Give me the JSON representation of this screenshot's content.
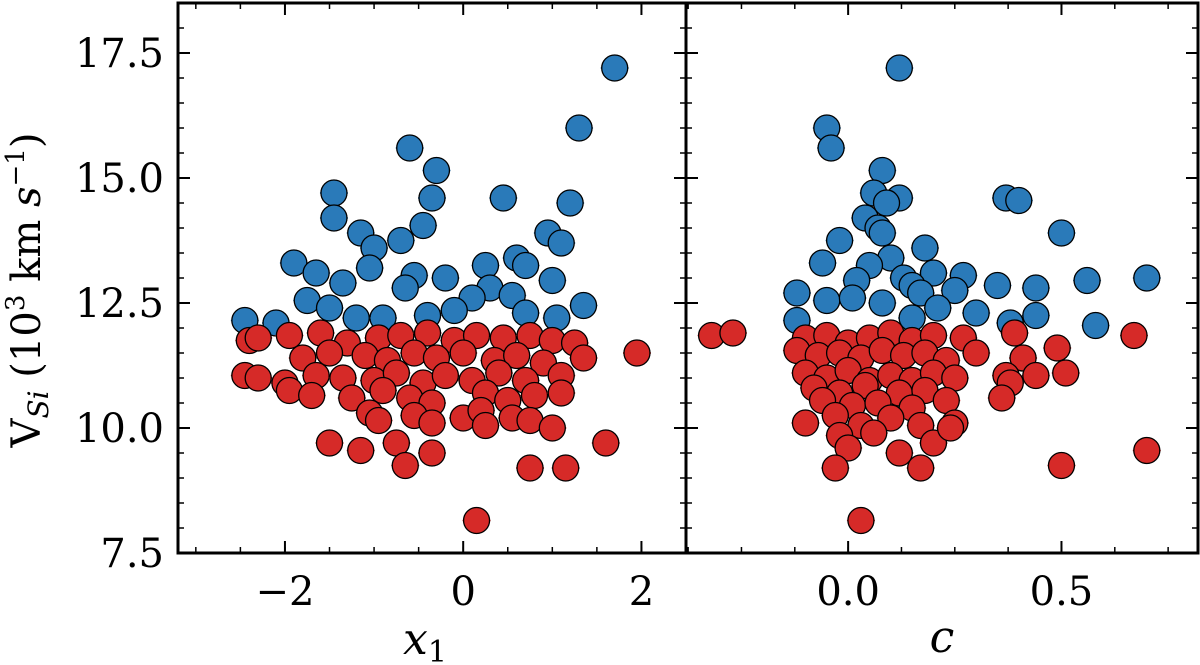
{
  "chart_data": [
    {
      "type": "scatter",
      "xlabel": "x1",
      "ylabel": "V_Si (10^3 km s^-1)",
      "xlim": [
        -3.2,
        2.5
      ],
      "ylim": [
        7.5,
        18.5
      ],
      "x_ticks": [
        -2,
        0,
        2
      ],
      "x_tick_labels": [
        "−2",
        "0",
        "2"
      ],
      "y_ticks": [
        7.5,
        10.0,
        12.5,
        15.0,
        17.5
      ],
      "y_tick_labels": [
        "7.5",
        "10.0",
        "12.5",
        "15.0",
        "17.5"
      ],
      "grid": false,
      "series": [
        {
          "color": "#2a7ab9",
          "points": [
            [
              1.7,
              17.2
            ],
            [
              1.3,
              16.0
            ],
            [
              -0.6,
              15.6
            ],
            [
              -0.3,
              15.15
            ],
            [
              -1.45,
              14.7
            ],
            [
              0.45,
              14.6
            ],
            [
              -0.35,
              14.6
            ],
            [
              1.2,
              14.5
            ],
            [
              -1.45,
              14.2
            ],
            [
              -0.45,
              14.05
            ],
            [
              -1.15,
              13.9
            ],
            [
              0.95,
              13.9
            ],
            [
              -0.7,
              13.75
            ],
            [
              1.1,
              13.7
            ],
            [
              -1.0,
              13.6
            ],
            [
              0.6,
              13.4
            ],
            [
              -1.9,
              13.3
            ],
            [
              0.25,
              13.25
            ],
            [
              -1.05,
              13.2
            ],
            [
              0.7,
              13.25
            ],
            [
              -1.65,
              13.1
            ],
            [
              -0.55,
              13.05
            ],
            [
              -0.2,
              13.0
            ],
            [
              1.0,
              12.95
            ],
            [
              -1.35,
              12.9
            ],
            [
              -0.65,
              12.8
            ],
            [
              0.3,
              12.8
            ],
            [
              0.55,
              12.65
            ],
            [
              0.1,
              12.6
            ],
            [
              1.35,
              12.45
            ],
            [
              -1.75,
              12.55
            ],
            [
              -1.5,
              12.4
            ],
            [
              -0.1,
              12.35
            ],
            [
              -0.9,
              12.2
            ],
            [
              0.7,
              12.3
            ],
            [
              1.05,
              12.2
            ],
            [
              -2.45,
              12.15
            ],
            [
              -2.1,
              12.1
            ],
            [
              -1.2,
              12.2
            ],
            [
              -0.4,
              12.25
            ]
          ]
        },
        {
          "color": "#d62a28",
          "points": [
            [
              -2.4,
              11.75
            ],
            [
              -2.3,
              11.8
            ],
            [
              -1.95,
              11.85
            ],
            [
              -1.6,
              11.9
            ],
            [
              -1.3,
              11.7
            ],
            [
              -0.95,
              11.8
            ],
            [
              -0.7,
              11.85
            ],
            [
              -0.4,
              11.9
            ],
            [
              -0.1,
              11.75
            ],
            [
              0.15,
              11.85
            ],
            [
              0.45,
              11.8
            ],
            [
              0.75,
              11.85
            ],
            [
              1.0,
              11.75
            ],
            [
              1.25,
              11.7
            ],
            [
              1.95,
              11.5
            ],
            [
              -1.8,
              11.4
            ],
            [
              -1.5,
              11.5
            ],
            [
              -1.1,
              11.45
            ],
            [
              -0.85,
              11.35
            ],
            [
              -0.55,
              11.5
            ],
            [
              -0.3,
              11.4
            ],
            [
              0.0,
              11.5
            ],
            [
              0.35,
              11.35
            ],
            [
              0.6,
              11.45
            ],
            [
              0.9,
              11.3
            ],
            [
              1.35,
              11.4
            ],
            [
              -2.45,
              11.05
            ],
            [
              -2.3,
              11.0
            ],
            [
              -2.0,
              10.9
            ],
            [
              -1.65,
              11.05
            ],
            [
              -1.35,
              11.0
            ],
            [
              -1.0,
              10.95
            ],
            [
              -0.75,
              11.1
            ],
            [
              -0.45,
              10.9
            ],
            [
              -0.2,
              11.05
            ],
            [
              0.1,
              10.95
            ],
            [
              0.4,
              11.1
            ],
            [
              0.7,
              10.95
            ],
            [
              1.1,
              11.05
            ],
            [
              -1.95,
              10.75
            ],
            [
              -1.7,
              10.65
            ],
            [
              -1.25,
              10.6
            ],
            [
              -0.9,
              10.75
            ],
            [
              -0.6,
              10.6
            ],
            [
              -0.35,
              10.5
            ],
            [
              0.25,
              10.7
            ],
            [
              0.5,
              10.55
            ],
            [
              0.8,
              10.65
            ],
            [
              1.1,
              10.7
            ],
            [
              -1.05,
              10.3
            ],
            [
              -0.55,
              10.25
            ],
            [
              0.0,
              10.2
            ],
            [
              0.2,
              10.35
            ],
            [
              0.55,
              10.2
            ],
            [
              -0.35,
              10.1
            ],
            [
              0.25,
              10.05
            ],
            [
              0.75,
              10.15
            ],
            [
              1.0,
              10.0
            ],
            [
              -0.95,
              10.15
            ],
            [
              -1.5,
              9.7
            ],
            [
              -1.15,
              9.55
            ],
            [
              -0.75,
              9.7
            ],
            [
              -0.35,
              9.5
            ],
            [
              -0.65,
              9.25
            ],
            [
              0.75,
              9.2
            ],
            [
              1.15,
              9.2
            ],
            [
              1.6,
              9.7
            ],
            [
              0.15,
              8.15
            ]
          ]
        }
      ]
    },
    {
      "type": "scatter",
      "xlabel": "c",
      "xlim": [
        -0.38,
        0.82
      ],
      "ylim": [
        7.5,
        18.5
      ],
      "x_ticks": [
        0.0,
        0.5
      ],
      "x_tick_labels": [
        "0.0",
        "0.5"
      ],
      "grid": false,
      "series": [
        {
          "color": "#2a7ab9",
          "points": [
            [
              0.12,
              17.2
            ],
            [
              -0.05,
              16.0
            ],
            [
              -0.04,
              15.6
            ],
            [
              0.08,
              15.15
            ],
            [
              0.06,
              14.7
            ],
            [
              0.12,
              14.6
            ],
            [
              0.37,
              14.6
            ],
            [
              0.4,
              14.55
            ],
            [
              0.09,
              14.5
            ],
            [
              0.04,
              14.2
            ],
            [
              0.07,
              14.0
            ],
            [
              0.5,
              13.9
            ],
            [
              -0.02,
              13.75
            ],
            [
              0.08,
              13.9
            ],
            [
              0.18,
              13.6
            ],
            [
              0.1,
              13.4
            ],
            [
              -0.06,
              13.3
            ],
            [
              0.05,
              13.25
            ],
            [
              0.2,
              13.1
            ],
            [
              0.27,
              13.05
            ],
            [
              0.13,
              13.0
            ],
            [
              0.02,
              12.95
            ],
            [
              0.56,
              12.95
            ],
            [
              0.7,
              13.0
            ],
            [
              0.15,
              12.85
            ],
            [
              0.35,
              12.85
            ],
            [
              0.44,
              12.8
            ],
            [
              0.25,
              12.75
            ],
            [
              0.17,
              12.7
            ],
            [
              -0.12,
              12.7
            ],
            [
              -0.05,
              12.55
            ],
            [
              0.01,
              12.6
            ],
            [
              0.08,
              12.5
            ],
            [
              0.21,
              12.4
            ],
            [
              0.3,
              12.3
            ],
            [
              0.44,
              12.25
            ],
            [
              0.58,
              12.05
            ],
            [
              0.38,
              12.1
            ],
            [
              -0.12,
              12.15
            ],
            [
              0.15,
              12.2
            ]
          ]
        },
        {
          "color": "#d62a28",
          "points": [
            [
              -0.32,
              11.85
            ],
            [
              -0.27,
              11.9
            ],
            [
              -0.1,
              11.8
            ],
            [
              -0.05,
              11.85
            ],
            [
              0.0,
              11.7
            ],
            [
              0.05,
              11.8
            ],
            [
              0.1,
              11.9
            ],
            [
              0.15,
              11.75
            ],
            [
              0.2,
              11.85
            ],
            [
              0.27,
              11.8
            ],
            [
              0.39,
              11.9
            ],
            [
              0.67,
              11.85
            ],
            [
              -0.12,
              11.55
            ],
            [
              -0.07,
              11.45
            ],
            [
              -0.02,
              11.5
            ],
            [
              0.03,
              11.4
            ],
            [
              0.08,
              11.55
            ],
            [
              0.13,
              11.45
            ],
            [
              0.18,
              11.5
            ],
            [
              0.23,
              11.35
            ],
            [
              0.3,
              11.5
            ],
            [
              0.41,
              11.4
            ],
            [
              0.49,
              11.6
            ],
            [
              -0.1,
              11.1
            ],
            [
              -0.05,
              11.0
            ],
            [
              0.0,
              11.15
            ],
            [
              0.05,
              10.95
            ],
            [
              0.1,
              11.05
            ],
            [
              0.15,
              10.95
            ],
            [
              0.2,
              11.1
            ],
            [
              0.25,
              11.0
            ],
            [
              0.37,
              11.05
            ],
            [
              0.44,
              11.05
            ],
            [
              0.51,
              11.1
            ],
            [
              -0.08,
              10.8
            ],
            [
              -0.02,
              10.7
            ],
            [
              0.04,
              10.85
            ],
            [
              0.12,
              10.7
            ],
            [
              0.18,
              10.75
            ],
            [
              0.38,
              10.9
            ],
            [
              -0.06,
              10.55
            ],
            [
              0.01,
              10.45
            ],
            [
              0.07,
              10.5
            ],
            [
              0.15,
              10.4
            ],
            [
              0.23,
              10.55
            ],
            [
              0.36,
              10.6
            ],
            [
              -0.1,
              10.1
            ],
            [
              -0.03,
              10.25
            ],
            [
              0.03,
              10.05
            ],
            [
              0.1,
              10.2
            ],
            [
              0.17,
              10.05
            ],
            [
              0.25,
              10.1
            ],
            [
              0.06,
              9.9
            ],
            [
              -0.02,
              9.85
            ],
            [
              0.0,
              9.6
            ],
            [
              0.2,
              9.7
            ],
            [
              0.24,
              10.0
            ],
            [
              0.12,
              9.5
            ],
            [
              -0.03,
              9.2
            ],
            [
              0.17,
              9.2
            ],
            [
              0.5,
              9.25
            ],
            [
              0.7,
              9.55
            ],
            [
              0.03,
              8.15
            ]
          ]
        }
      ]
    }
  ],
  "labels": {
    "ylabel_main": "V",
    "ylabel_sub": "Si",
    "ylabel_units": "(10",
    "ylabel_units_sup": "3",
    "ylabel_km": "km",
    "ylabel_s": "s",
    "ylabel_s_sup": "−1",
    "ylabel_close": ")",
    "xlabel_left_main": "x",
    "xlabel_left_sub": "1",
    "xlabel_right": "c"
  }
}
